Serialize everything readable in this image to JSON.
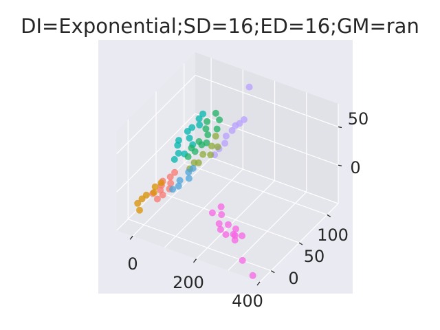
{
  "chart_data": {
    "type": "scatter",
    "projection": "3d",
    "title": "DI=Exponential;SD=16;ED=16;GM=ran",
    "xlabel": "",
    "ylabel": "",
    "zlabel": "",
    "grid": true,
    "legend": "none",
    "xlim": [
      -50,
      400
    ],
    "ylim": [
      -20,
      120
    ],
    "zlim": [
      -50,
      80
    ],
    "xticks": [
      "0",
      "200",
      "400"
    ],
    "yticks": [
      "0",
      "50",
      "100"
    ],
    "zticks": [
      "0",
      "50"
    ],
    "pane_color": "#eaeaf2",
    "series": [
      {
        "color": "#f564e3",
        "values": [
          [
            250,
            18,
            -38
          ],
          [
            270,
            22,
            -40
          ],
          [
            260,
            15,
            -36
          ],
          [
            240,
            10,
            -34
          ],
          [
            310,
            0,
            -50
          ],
          [
            360,
            -10,
            -55
          ],
          [
            220,
            12,
            -32
          ],
          [
            230,
            20,
            -30
          ],
          [
            200,
            25,
            -25
          ],
          [
            190,
            30,
            -20
          ],
          [
            210,
            15,
            -28
          ],
          [
            180,
            20,
            -22
          ],
          [
            245,
            25,
            -37
          ],
          [
            265,
            12,
            -39
          ]
        ]
      },
      {
        "color": "#b79fff",
        "values": [
          [
            120,
            120,
            60
          ],
          [
            130,
            105,
            30
          ],
          [
            110,
            95,
            20
          ],
          [
            100,
            90,
            15
          ],
          [
            115,
            98,
            25
          ],
          [
            105,
            85,
            10
          ],
          [
            95,
            80,
            5
          ],
          [
            125,
            100,
            28
          ],
          [
            90,
            75,
            0
          ]
        ]
      },
      {
        "color": "#00b5ad",
        "values": [
          [
            10,
            80,
            20
          ],
          [
            20,
            70,
            15
          ],
          [
            0,
            60,
            10
          ],
          [
            15,
            90,
            25
          ],
          [
            5,
            75,
            18
          ],
          [
            25,
            85,
            22
          ],
          [
            -5,
            65,
            12
          ],
          [
            30,
            70,
            8
          ],
          [
            12,
            55,
            5
          ],
          [
            18,
            95,
            28
          ],
          [
            8,
            50,
            0
          ],
          [
            22,
            60,
            2
          ]
        ]
      },
      {
        "color": "#1eb264",
        "values": [
          [
            40,
            90,
            25
          ],
          [
            60,
            80,
            18
          ],
          [
            50,
            70,
            15
          ],
          [
            70,
            95,
            28
          ],
          [
            45,
            85,
            20
          ],
          [
            55,
            60,
            10
          ],
          [
            65,
            75,
            12
          ],
          [
            35,
            65,
            8
          ],
          [
            75,
            88,
            22
          ],
          [
            50,
            100,
            30
          ],
          [
            42,
            55,
            5
          ],
          [
            62,
            68,
            14
          ]
        ]
      },
      {
        "color": "#8da93a",
        "values": [
          [
            80,
            60,
            10
          ],
          [
            90,
            70,
            15
          ],
          [
            70,
            50,
            5
          ],
          [
            85,
            80,
            20
          ],
          [
            95,
            65,
            8
          ],
          [
            75,
            55,
            2
          ],
          [
            100,
            75,
            12
          ],
          [
            65,
            45,
            0
          ]
        ]
      },
      {
        "color": "#f8766d",
        "values": [
          [
            20,
            20,
            -10
          ],
          [
            30,
            30,
            -5
          ],
          [
            10,
            10,
            -15
          ],
          [
            40,
            25,
            -8
          ],
          [
            25,
            15,
            -12
          ],
          [
            35,
            35,
            -2
          ],
          [
            15,
            25,
            -9
          ],
          [
            45,
            20,
            -11
          ],
          [
            28,
            8,
            -18
          ],
          [
            38,
            12,
            -14
          ]
        ]
      },
      {
        "color": "#d89000",
        "values": [
          [
            -10,
            10,
            -20
          ],
          [
            0,
            20,
            -15
          ],
          [
            -20,
            0,
            -25
          ],
          [
            5,
            15,
            -18
          ],
          [
            -15,
            5,
            -22
          ],
          [
            10,
            25,
            -12
          ],
          [
            -5,
            -5,
            -28
          ]
        ]
      },
      {
        "color": "#4ba3d8",
        "values": [
          [
            60,
            30,
            -5
          ],
          [
            70,
            40,
            0
          ],
          [
            55,
            20,
            -10
          ],
          [
            80,
            35,
            -3
          ],
          [
            65,
            25,
            -8
          ],
          [
            75,
            45,
            2
          ]
        ]
      }
    ]
  }
}
